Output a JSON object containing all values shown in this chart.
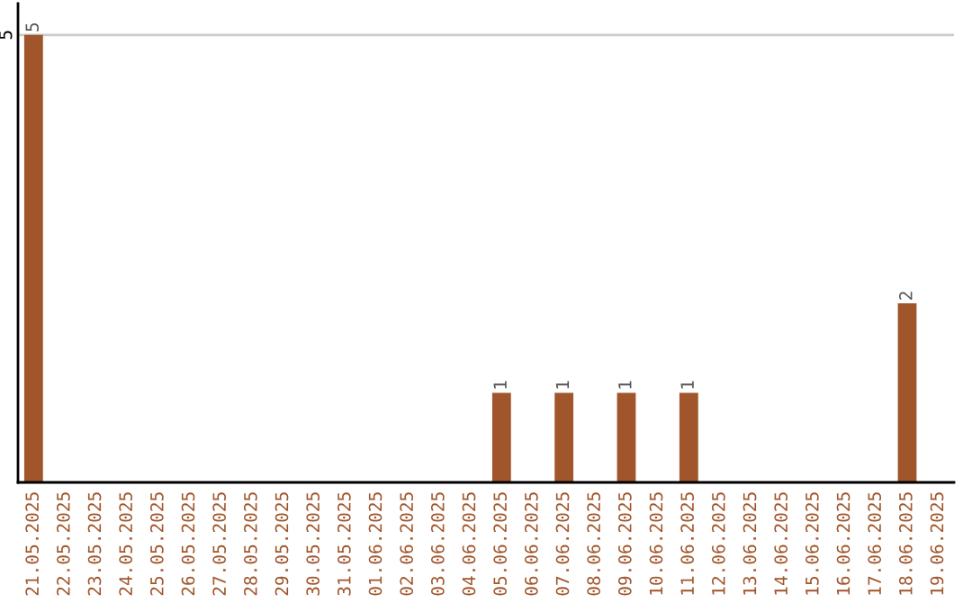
{
  "chart_data": {
    "type": "bar",
    "categories": [
      "21.05.2025",
      "22.05.2025",
      "23.05.2025",
      "24.05.2025",
      "25.05.2025",
      "26.05.2025",
      "27.05.2025",
      "28.05.2025",
      "29.05.2025",
      "30.05.2025",
      "31.05.2025",
      "01.06.2025",
      "02.06.2025",
      "03.06.2025",
      "04.06.2025",
      "05.06.2025",
      "06.06.2025",
      "07.06.2025",
      "08.06.2025",
      "09.06.2025",
      "10.06.2025",
      "11.06.2025",
      "12.06.2025",
      "13.06.2025",
      "14.06.2025",
      "15.06.2025",
      "16.06.2025",
      "17.06.2025",
      "18.06.2025",
      "19.06.2025"
    ],
    "values": [
      5,
      0,
      0,
      0,
      0,
      0,
      0,
      0,
      0,
      0,
      0,
      0,
      0,
      0,
      0,
      1,
      0,
      1,
      0,
      1,
      0,
      1,
      0,
      0,
      0,
      0,
      0,
      0,
      2,
      0
    ],
    "value_labels": [
      "5",
      null,
      null,
      null,
      null,
      null,
      null,
      null,
      null,
      null,
      null,
      null,
      null,
      null,
      null,
      "1",
      null,
      "1",
      null,
      "1",
      null,
      "1",
      null,
      null,
      null,
      null,
      null,
      null,
      "2",
      null
    ],
    "color": "#a0552a",
    "ylim": [
      0,
      5.35
    ],
    "yticks": [
      5
    ],
    "grid": "y"
  }
}
